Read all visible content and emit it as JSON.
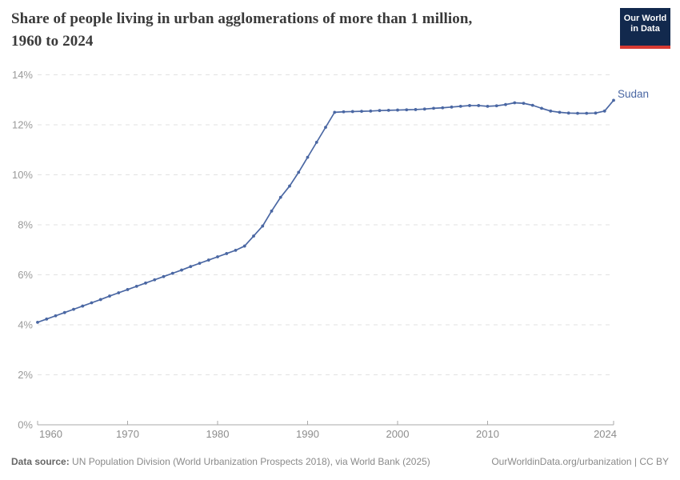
{
  "header": {
    "title_line1": "Share of people living in urban agglomerations of more than 1 million,",
    "title_line2": "1960 to 2024",
    "logo": {
      "line1": "Our World",
      "line2": "in Data",
      "bg_color": "#12294d",
      "accent_color": "#d73a32"
    }
  },
  "chart_data": {
    "type": "line",
    "title": "Share of people living in urban agglomerations of more than 1 million, 1960 to 2024",
    "unit": "%",
    "xlim": [
      1960,
      2024
    ],
    "ylim": [
      0,
      14
    ],
    "grid": "horizontal-dashed",
    "legend": "end-of-line-label",
    "x": [
      1960,
      1961,
      1962,
      1963,
      1964,
      1965,
      1966,
      1967,
      1968,
      1969,
      1970,
      1971,
      1972,
      1973,
      1974,
      1975,
      1976,
      1977,
      1978,
      1979,
      1980,
      1981,
      1982,
      1983,
      1984,
      1985,
      1986,
      1987,
      1988,
      1989,
      1990,
      1991,
      1992,
      1993,
      1994,
      1995,
      1996,
      1997,
      1998,
      1999,
      2000,
      2001,
      2002,
      2003,
      2004,
      2005,
      2006,
      2007,
      2008,
      2009,
      2010,
      2011,
      2012,
      2013,
      2014,
      2015,
      2016,
      2017,
      2018,
      2019,
      2020,
      2021,
      2022,
      2023,
      2024
    ],
    "series": [
      {
        "name": "Sudan",
        "color": "#4a67a3",
        "values": [
          4.1,
          4.23,
          4.36,
          4.49,
          4.62,
          4.75,
          4.88,
          5.01,
          5.15,
          5.28,
          5.41,
          5.54,
          5.67,
          5.8,
          5.93,
          6.06,
          6.19,
          6.33,
          6.46,
          6.59,
          6.72,
          6.85,
          6.98,
          7.15,
          7.55,
          7.95,
          8.55,
          9.1,
          9.55,
          10.1,
          10.7,
          11.3,
          11.9,
          12.5,
          12.52,
          12.53,
          12.54,
          12.55,
          12.57,
          12.58,
          12.59,
          12.6,
          12.61,
          12.63,
          12.66,
          12.68,
          12.71,
          12.74,
          12.77,
          12.77,
          12.74,
          12.76,
          12.81,
          12.88,
          12.86,
          12.78,
          12.66,
          12.55,
          12.5,
          12.47,
          12.46,
          12.46,
          12.47,
          12.55,
          12.98
        ]
      }
    ],
    "y_ticks": [
      {
        "value": 0,
        "label": "0%"
      },
      {
        "value": 2,
        "label": "2%"
      },
      {
        "value": 4,
        "label": "4%"
      },
      {
        "value": 6,
        "label": "6%"
      },
      {
        "value": 8,
        "label": "8%"
      },
      {
        "value": 10,
        "label": "10%"
      },
      {
        "value": 12,
        "label": "12%"
      },
      {
        "value": 14,
        "label": "14%"
      }
    ],
    "x_ticks": [
      {
        "value": 1960,
        "label": "1960"
      },
      {
        "value": 1970,
        "label": "1970"
      },
      {
        "value": 1980,
        "label": "1980"
      },
      {
        "value": 1990,
        "label": "1990"
      },
      {
        "value": 2000,
        "label": "2000"
      },
      {
        "value": 2010,
        "label": "2010"
      },
      {
        "value": 2024,
        "label": "2024"
      }
    ]
  },
  "footer": {
    "source_label": "Data source:",
    "source_text": " UN Population Division (World Urbanization Prospects 2018), via World Bank (2025)",
    "link_text": "OurWorldinData.org/urbanization | CC BY"
  }
}
